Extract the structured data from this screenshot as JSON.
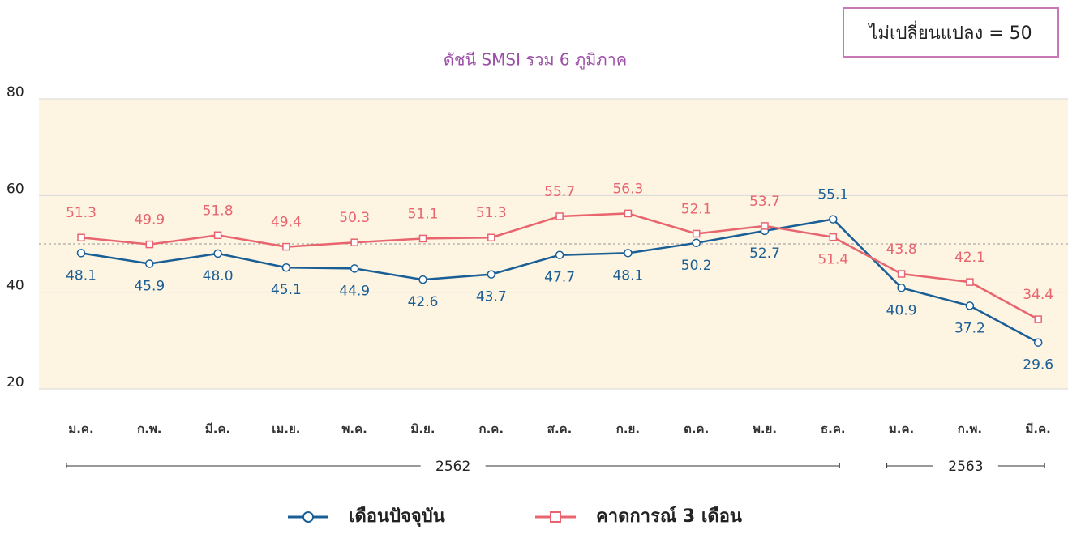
{
  "chart_data": {
    "type": "line",
    "title": "ดัชนี SMSI รวม 6 ภูมิภาค",
    "annotation": "ไม่เปลี่ยนแปลง = 50",
    "reference_line": 50,
    "categories": [
      "ม.ค.",
      "ก.พ.",
      "มี.ค.",
      "เม.ย.",
      "พ.ค.",
      "มิ.ย.",
      "ก.ค.",
      "ส.ค.",
      "ก.ย.",
      "ต.ค.",
      "พ.ย.",
      "ธ.ค.",
      "ม.ค.",
      "ก.พ.",
      "มี.ค."
    ],
    "year_groups": [
      {
        "label": "2562",
        "span": 12
      },
      {
        "label": "2563",
        "span": 3
      }
    ],
    "series": [
      {
        "name": "เดือนปัจจุบัน",
        "color": "#1a5e96",
        "marker": "circle",
        "values": [
          48.1,
          45.9,
          48.0,
          45.1,
          44.9,
          42.6,
          43.7,
          47.7,
          48.1,
          50.2,
          52.7,
          55.1,
          40.9,
          37.2,
          29.6
        ],
        "value_labels": [
          "48.1",
          "45.9",
          "48.0",
          "45.1",
          "44.9",
          "42.6",
          "43.7",
          "47.7",
          "48.1",
          "50.2",
          "52.7",
          "55.1",
          "40.9",
          "37.2",
          "29.6"
        ]
      },
      {
        "name": "คาดการณ์ 3 เดือน",
        "color": "#e8656f",
        "marker": "square",
        "values": [
          51.3,
          49.9,
          51.8,
          49.4,
          50.3,
          51.1,
          51.3,
          55.7,
          56.3,
          52.1,
          53.7,
          51.4,
          43.8,
          42.1,
          34.4
        ],
        "value_labels": [
          "51.3",
          "49.9",
          "51.8",
          "49.4",
          "50.3",
          "51.1",
          "51.3",
          "55.7",
          "56.3",
          "52.1",
          "53.7",
          "51.4",
          "43.8",
          "42.1",
          "34.4"
        ]
      }
    ],
    "ylim": [
      20,
      80
    ],
    "yticks": [
      20,
      40,
      60,
      80
    ],
    "grid": true
  }
}
